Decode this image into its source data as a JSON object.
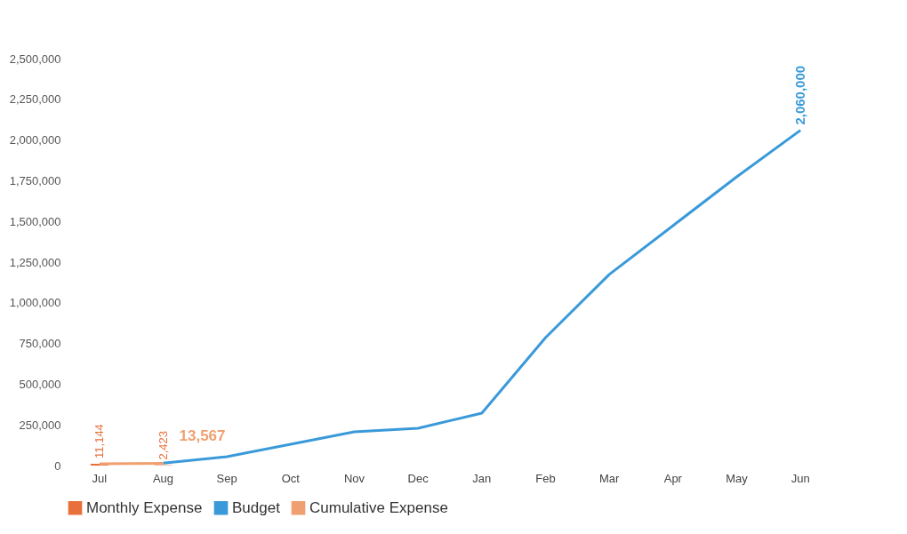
{
  "chart_data": {
    "type": "line",
    "categories": [
      "Jul",
      "Aug",
      "Sep",
      "Oct",
      "Nov",
      "Dec",
      "Jan",
      "Feb",
      "Mar",
      "Apr",
      "May",
      "Jun"
    ],
    "series": [
      {
        "name": "Monthly Expense",
        "type": "bar",
        "color": "#e8703a",
        "values": [
          11144,
          2423,
          null,
          null,
          null,
          null,
          null,
          null,
          null,
          null,
          null,
          null
        ],
        "value_labels": [
          "11,144",
          "2,423",
          null,
          null,
          null,
          null,
          null,
          null,
          null,
          null,
          null,
          null
        ]
      },
      {
        "name": "Budget",
        "color": "#3a9ad9",
        "values": [
          null,
          15000,
          55000,
          131000,
          207000,
          229000,
          322000,
          786000,
          1174000,
          1474000,
          1774000,
          2060000
        ],
        "value_labels": [
          null,
          null,
          null,
          null,
          null,
          null,
          null,
          null,
          null,
          null,
          null,
          "2,060,000"
        ]
      },
      {
        "name": "Cumulative Expense",
        "color": "#f0a070",
        "values": [
          11144,
          13567,
          null,
          null,
          null,
          null,
          null,
          null,
          null,
          null,
          null,
          null
        ],
        "value_labels": [
          null,
          "13,567",
          null,
          null,
          null,
          null,
          null,
          null,
          null,
          null,
          null,
          null
        ]
      }
    ],
    "ylim": [
      0,
      2500000
    ],
    "yticks": [
      0,
      {
        "value": 250000,
        "label": "250,000"
      },
      {
        "value": 500000,
        "label": "500,000"
      },
      {
        "value": 750000,
        "label": "750,000"
      },
      {
        "value": 1000000,
        "label": "1,000,000"
      },
      {
        "value": 1250000,
        "label": "1,250,000"
      },
      {
        "value": 1500000,
        "label": "1,500,000"
      },
      {
        "value": 1750000,
        "label": "1,750,000"
      },
      {
        "value": 2000000,
        "label": "2,000,000"
      },
      {
        "value": 2250000,
        "label": "2,250,000"
      },
      {
        "value": 2500000,
        "label": "2,500,000"
      }
    ],
    "grid": false,
    "legend": "bottom"
  }
}
